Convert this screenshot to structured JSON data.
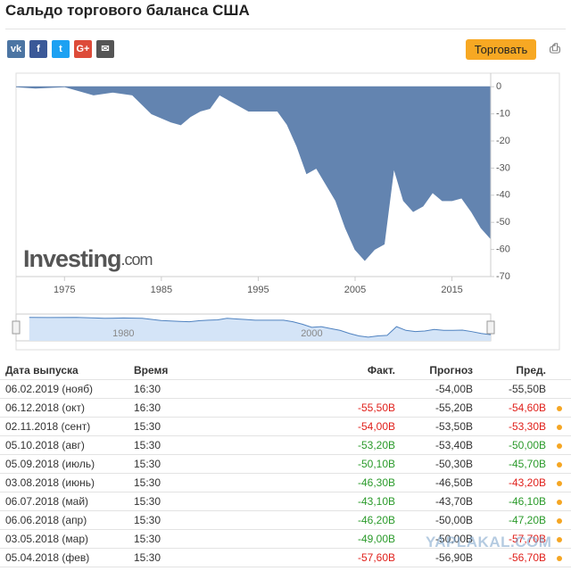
{
  "header": {
    "title": "Сальдо торгового баланса США"
  },
  "toolbar": {
    "trade_button": "Торговать"
  },
  "chart_data": {
    "type": "area",
    "x": [
      1970,
      1972,
      1975,
      1977,
      1978,
      1980,
      1982,
      1984,
      1986,
      1987,
      1988,
      1989,
      1990,
      1991,
      1992,
      1993,
      1994,
      1995,
      1996,
      1997,
      1998,
      1999,
      2000,
      2001,
      2002,
      2003,
      2004,
      2005,
      2006,
      2007,
      2008,
      2009,
      2010,
      2011,
      2012,
      2013,
      2014,
      2015,
      2016,
      2017,
      2018,
      2019
    ],
    "values": [
      0,
      -0.5,
      0,
      -2,
      -3,
      -2,
      -3,
      -10,
      -13,
      -14,
      -11,
      -9,
      -8,
      -3,
      -5,
      -7,
      -9,
      -9,
      -9,
      -9,
      -14,
      -22,
      -32,
      -30,
      -36,
      -42,
      -52,
      -60,
      -64,
      -60,
      -58,
      -30,
      -42,
      -46,
      -44,
      -39,
      -42,
      -42,
      -41,
      -46,
      -52,
      -56
    ],
    "color": "#6384b0",
    "xlim": [
      1970,
      2019
    ],
    "ylim": [
      -70,
      5
    ],
    "xticks": [
      1975,
      1985,
      1995,
      2005,
      2015
    ],
    "yticks": [
      0,
      -10,
      -20,
      -30,
      -40,
      -50,
      -60,
      -70
    ],
    "watermark": "Investing",
    "watermark_suffix": ".com",
    "navigator": {
      "xlim": [
        1968.6,
        2019
      ],
      "xticks": [
        1980,
        2000
      ]
    }
  },
  "table": {
    "columns": [
      "Дата выпуска",
      "Время",
      "Факт.",
      "Прогноз",
      "Пред."
    ],
    "rows": [
      {
        "date": "06.02.2019 (нояб)",
        "time": "16:30",
        "fact": null,
        "forecast": "-54,00B",
        "previous": "-55,50B",
        "fact_color": "#333333",
        "previous_color": "#333333"
      },
      {
        "date": "06.12.2018 (окт)",
        "time": "16:30",
        "fact": "-55,50B",
        "forecast": "-55,20B",
        "previous": "-54,60B",
        "fact_color": "#e0201b",
        "previous_color": "#e0201b"
      },
      {
        "date": "02.11.2018 (сент)",
        "time": "15:30",
        "fact": "-54,00B",
        "forecast": "-53,50B",
        "previous": "-53,30B",
        "fact_color": "#e0201b",
        "previous_color": "#e0201b"
      },
      {
        "date": "05.10.2018 (авг)",
        "time": "15:30",
        "fact": "-53,20B",
        "forecast": "-53,40B",
        "previous": "-50,00B",
        "fact_color": "#2a9a2a",
        "previous_color": "#2a9a2a"
      },
      {
        "date": "05.09.2018 (июль)",
        "time": "15:30",
        "fact": "-50,10B",
        "forecast": "-50,30B",
        "previous": "-45,70B",
        "fact_color": "#2a9a2a",
        "previous_color": "#2a9a2a"
      },
      {
        "date": "03.08.2018 (июнь)",
        "time": "15:30",
        "fact": "-46,30B",
        "forecast": "-46,50B",
        "previous": "-43,20B",
        "fact_color": "#2a9a2a",
        "previous_color": "#e0201b"
      },
      {
        "date": "06.07.2018 (май)",
        "time": "15:30",
        "fact": "-43,10B",
        "forecast": "-43,70B",
        "previous": "-46,10B",
        "fact_color": "#2a9a2a",
        "previous_color": "#2a9a2a"
      },
      {
        "date": "06.06.2018 (апр)",
        "time": "15:30",
        "fact": "-46,20B",
        "forecast": "-50,00B",
        "previous": "-47,20B",
        "fact_color": "#2a9a2a",
        "previous_color": "#2a9a2a"
      },
      {
        "date": "03.05.2018 (мар)",
        "time": "15:30",
        "fact": "-49,00B",
        "forecast": "-50,00B",
        "previous": "-57,70B",
        "fact_color": "#2a9a2a",
        "previous_color": "#e0201b"
      },
      {
        "date": "05.04.2018 (фев)",
        "time": "15:30",
        "fact": "-57,60B",
        "forecast": "-56,90B",
        "previous": "-56,70B",
        "fact_color": "#e0201b",
        "previous_color": "#e0201b"
      }
    ]
  },
  "watermark": "YAPLAKAL.COM"
}
